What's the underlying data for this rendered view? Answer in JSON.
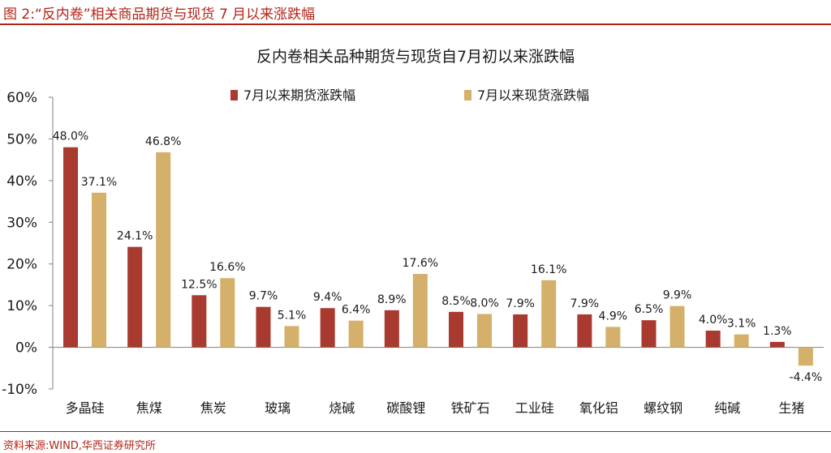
{
  "caption": "图 2:“反内卷”相关商品期货与现货 7 月以来涨跌幅",
  "source": "资料来源:WIND,华西证券研究所",
  "chart_data": {
    "type": "bar",
    "title": "反内卷相关品种期货与现货自7月初以来涨跌幅",
    "xlabel": "",
    "ylabel": "",
    "ylim": [
      -10,
      60
    ],
    "yticks": [
      60,
      50,
      40,
      30,
      20,
      10,
      0,
      -10
    ],
    "ytick_labels": [
      "60%",
      "50%",
      "40%",
      "30%",
      "20%",
      "10%",
      "0%",
      "-10%"
    ],
    "grid": false,
    "legend_position": "top",
    "categories": [
      "多晶硅",
      "焦煤",
      "焦炭",
      "玻璃",
      "烧碱",
      "碳酸锂",
      "铁矿石",
      "工业硅",
      "氧化铝",
      "螺纹钢",
      "纯碱",
      "生猪"
    ],
    "series": [
      {
        "name": "7月以来期货涨跌幅",
        "color": "#a93a2f",
        "values": [
          48.0,
          24.1,
          12.5,
          9.7,
          9.4,
          8.9,
          8.5,
          7.9,
          7.9,
          6.5,
          4.0,
          1.3
        ],
        "labels": [
          "48.0%",
          "24.1%",
          "12.5%",
          "9.7%",
          "9.4%",
          "8.9%",
          "8.5%",
          "7.9%",
          "7.9%",
          "6.5%",
          "4.0%",
          "1.3%"
        ]
      },
      {
        "name": "7月以来现货涨跌幅",
        "color": "#d4b06a",
        "values": [
          37.1,
          46.8,
          16.6,
          5.1,
          6.4,
          17.6,
          8.0,
          16.1,
          4.9,
          9.9,
          3.1,
          -4.4
        ],
        "labels": [
          "37.1%",
          "46.8%",
          "16.6%",
          "5.1%",
          "6.4%",
          "17.6%",
          "8.0%",
          "16.1%",
          "4.9%",
          "9.9%",
          "3.1%",
          "-4.4%"
        ]
      }
    ]
  }
}
